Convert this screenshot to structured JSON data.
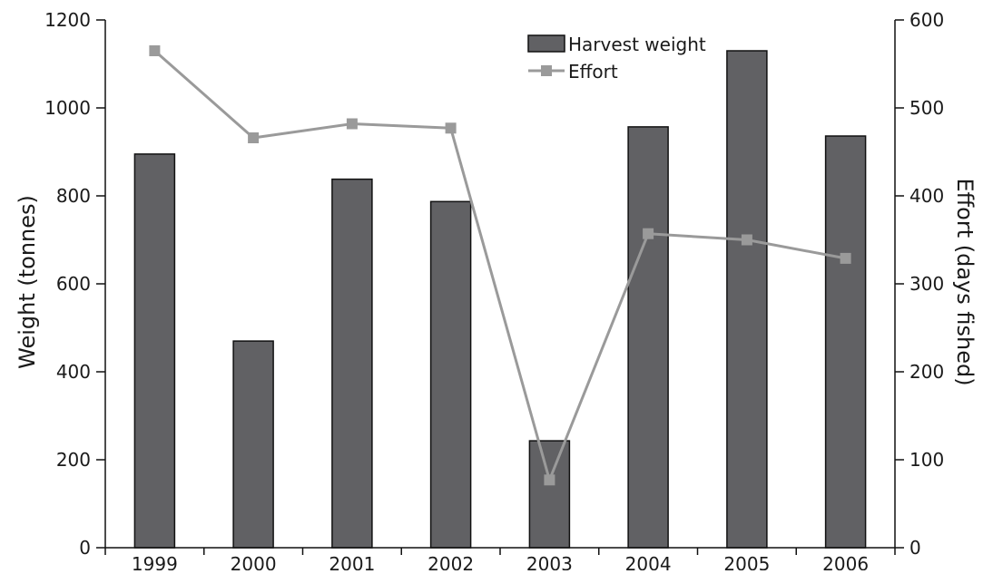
{
  "chart_data": {
    "type": "bar",
    "categories": [
      "1999",
      "2000",
      "2001",
      "2002",
      "2003",
      "2004",
      "2005",
      "2006"
    ],
    "series": [
      {
        "name": "Harvest weight",
        "type": "bar",
        "axis": "left",
        "values": [
          895,
          470,
          838,
          787,
          243,
          957,
          1130,
          936
        ],
        "color": "#616164"
      },
      {
        "name": "Effort",
        "type": "line",
        "axis": "right",
        "marker": "square",
        "values": [
          565,
          466,
          482,
          477,
          77,
          357,
          350,
          329
        ],
        "color": "#9a9a9a"
      }
    ],
    "ylabel": "Weight (tonnes)",
    "ylabel_right": "Effort (days fished)",
    "ylim": [
      0,
      1200
    ],
    "ylim_right": [
      0,
      600
    ],
    "yticks": [
      "0",
      "200",
      "400",
      "600",
      "800",
      "1000",
      "1200"
    ],
    "yticks_right": [
      "0",
      "100",
      "200",
      "300",
      "400",
      "500",
      "600"
    ],
    "grid": false,
    "legend_position": "top-right"
  }
}
